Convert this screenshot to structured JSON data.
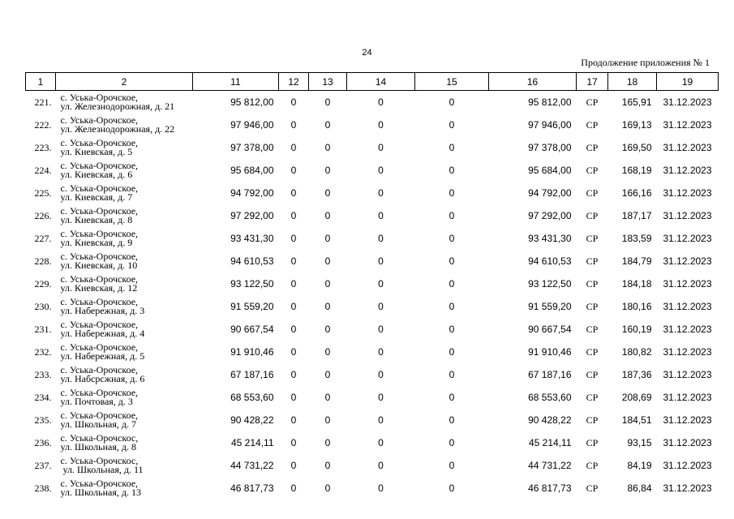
{
  "page_number": "24",
  "continuation": "Продолжение приложения № 1",
  "headers": [
    "1",
    "2",
    "11",
    "12",
    "13",
    "14",
    "15",
    "16",
    "17",
    "18",
    "19"
  ],
  "rows": [
    {
      "n": "221.",
      "a1": "с. Уська-Орочское,",
      "a2": "ул. Железнодорожная, д. 21",
      "c11": "95 812,00",
      "c12": "0",
      "c13": "0",
      "c14": "0",
      "c15": "0",
      "c16": "95 812,00",
      "c17": "СР",
      "c18": "165,91",
      "c19": "31.12.2023"
    },
    {
      "n": "222.",
      "a1": "с. Уська-Орочское,",
      "a2": "ул. Железнодорожная, д. 22",
      "c11": "97 946,00",
      "c12": "0",
      "c13": "0",
      "c14": "0",
      "c15": "0",
      "c16": "97 946,00",
      "c17": "СР",
      "c18": "169,13",
      "c19": "31.12.2023"
    },
    {
      "n": "223.",
      "a1": "с. Уська-Орочское,",
      "a2": "ул. Киевская, д. 5",
      "c11": "97 378,00",
      "c12": "0",
      "c13": "0",
      "c14": "0",
      "c15": "0",
      "c16": "97 378,00",
      "c17": "СР",
      "c18": "169,50",
      "c19": "31.12.2023"
    },
    {
      "n": "224.",
      "a1": "с. Уська-Орочское,",
      "a2": "ул. Киевская, д. 6",
      "c11": "95 684,00",
      "c12": "0",
      "c13": "0",
      "c14": "0",
      "c15": "0",
      "c16": "95 684,00",
      "c17": "СР",
      "c18": "168,19",
      "c19": "31.12.2023"
    },
    {
      "n": "225.",
      "a1": "с. Уська-Орочское,",
      "a2": "ул. Киевская, д. 7",
      "c11": "94 792,00",
      "c12": "0",
      "c13": "0",
      "c14": "0",
      "c15": "0",
      "c16": "94 792,00",
      "c17": "СР",
      "c18": "166,16",
      "c19": "31.12.2023"
    },
    {
      "n": "226.",
      "a1": "с. Уська-Орочское,",
      "a2": "ул. Киевская, д. 8",
      "c11": "97 292,00",
      "c12": "0",
      "c13": "0",
      "c14": "0",
      "c15": "0",
      "c16": "97 292,00",
      "c17": "СР",
      "c18": "187,17",
      "c19": "31.12.2023"
    },
    {
      "n": "227.",
      "a1": "с. Уська-Орочское,",
      "a2": "ул. Киевская, д. 9",
      "c11": "93 431,30",
      "c12": "0",
      "c13": "0",
      "c14": "0",
      "c15": "0",
      "c16": "93 431,30",
      "c17": "СР",
      "c18": "183,59",
      "c19": "31.12.2023"
    },
    {
      "n": "228.",
      "a1": "с. Уська-Орочское,",
      "a2": "ул. Киевская, д. 10",
      "c11": "94 610,53",
      "c12": "0",
      "c13": "0",
      "c14": "0",
      "c15": "0",
      "c16": "94 610,53",
      "c17": "СР",
      "c18": "184,79",
      "c19": "31.12.2023"
    },
    {
      "n": "229.",
      "a1": "с. Уська-Орочское,",
      "a2": "ул. Киевская, д. 12",
      "c11": "93 122,50",
      "c12": "0",
      "c13": "0",
      "c14": "0",
      "c15": "0",
      "c16": "93 122,50",
      "c17": "СР",
      "c18": "184,18",
      "c19": "31.12.2023"
    },
    {
      "n": "230.",
      "a1": "с. Уська-Орочское,",
      "a2": "ул. Набережная, д. 3",
      "c11": "91 559,20",
      "c12": "0",
      "c13": "0",
      "c14": "0",
      "c15": "0",
      "c16": "91 559,20",
      "c17": "СР",
      "c18": "180,16",
      "c19": "31.12.2023"
    },
    {
      "n": "231.",
      "a1": "с. Уська-Орочское,",
      "a2": "ул. Набережная, д. 4",
      "c11": "90 667,54",
      "c12": "0",
      "c13": "0",
      "c14": "0",
      "c15": "0",
      "c16": "90 667,54",
      "c17": "СР",
      "c18": "160,19",
      "c19": "31.12.2023"
    },
    {
      "n": "232.",
      "a1": "с. Уська-Орочское,",
      "a2": "ул. Набережная, д. 5",
      "c11": "91 910,46",
      "c12": "0",
      "c13": "0",
      "c14": "0",
      "c15": "0",
      "c16": "91 910,46",
      "c17": "СР",
      "c18": "180,82",
      "c19": "31.12.2023"
    },
    {
      "n": "233.",
      "a1": "с. Уська-Орочское,",
      "a2": "ул. Набсрсжная, д. 6",
      "c11": "67 187,16",
      "c12": "0",
      "c13": "0",
      "c14": "0",
      "c15": "0",
      "c16": "67 187,16",
      "c17": "СР",
      "c18": "187,36",
      "c19": "31.12.2023"
    },
    {
      "n": "234.",
      "a1": "с. Уська-Орочское,",
      "a2": "ул. Почтовая, д. 3",
      "c11": "68 553,60",
      "c12": "0",
      "c13": "0",
      "c14": "0",
      "c15": "0",
      "c16": "68 553,60",
      "c17": "СР",
      "c18": "208,69",
      "c19": "31.12.2023"
    },
    {
      "n": "235.",
      "a1": "с. Уська-Орочское,",
      "a2": "ул. Школьная, д. 7",
      "c11": "90 428,22",
      "c12": "0",
      "c13": "0",
      "c14": "0",
      "c15": "0",
      "c16": "90 428,22",
      "c17": "СР",
      "c18": "184,51",
      "c19": "31.12.2023"
    },
    {
      "n": "236.",
      "a1": "с. Уська-Орочскос,",
      "a2": "ул. Школьная, д. 8",
      "c11": "45 214,11",
      "c12": "0",
      "c13": "0",
      "c14": "0",
      "c15": "0",
      "c16": "45 214,11",
      "c17": "СР",
      "c18": "93,15",
      "c19": "31.12.2023"
    },
    {
      "n": "237.",
      "a1": "с. Уська-Орочскос,",
      "a2": " ул. Школьная, д. 11",
      "c11": "44 731,22",
      "c12": "0",
      "c13": "0",
      "c14": "0",
      "c15": "0",
      "c16": "44 731,22",
      "c17": "СР",
      "c18": "84,19",
      "c19": "31.12.2023"
    },
    {
      "n": "238.",
      "a1": "с. Уська-Орочское,",
      "a2": "ул. Школьная, д. 13",
      "c11": "46 817,73",
      "c12": "0",
      "c13": "0",
      "c14": "0",
      "c15": "0",
      "c16": "46 817,73",
      "c17": "СР",
      "c18": "86,84",
      "c19": "31.12.2023"
    }
  ]
}
